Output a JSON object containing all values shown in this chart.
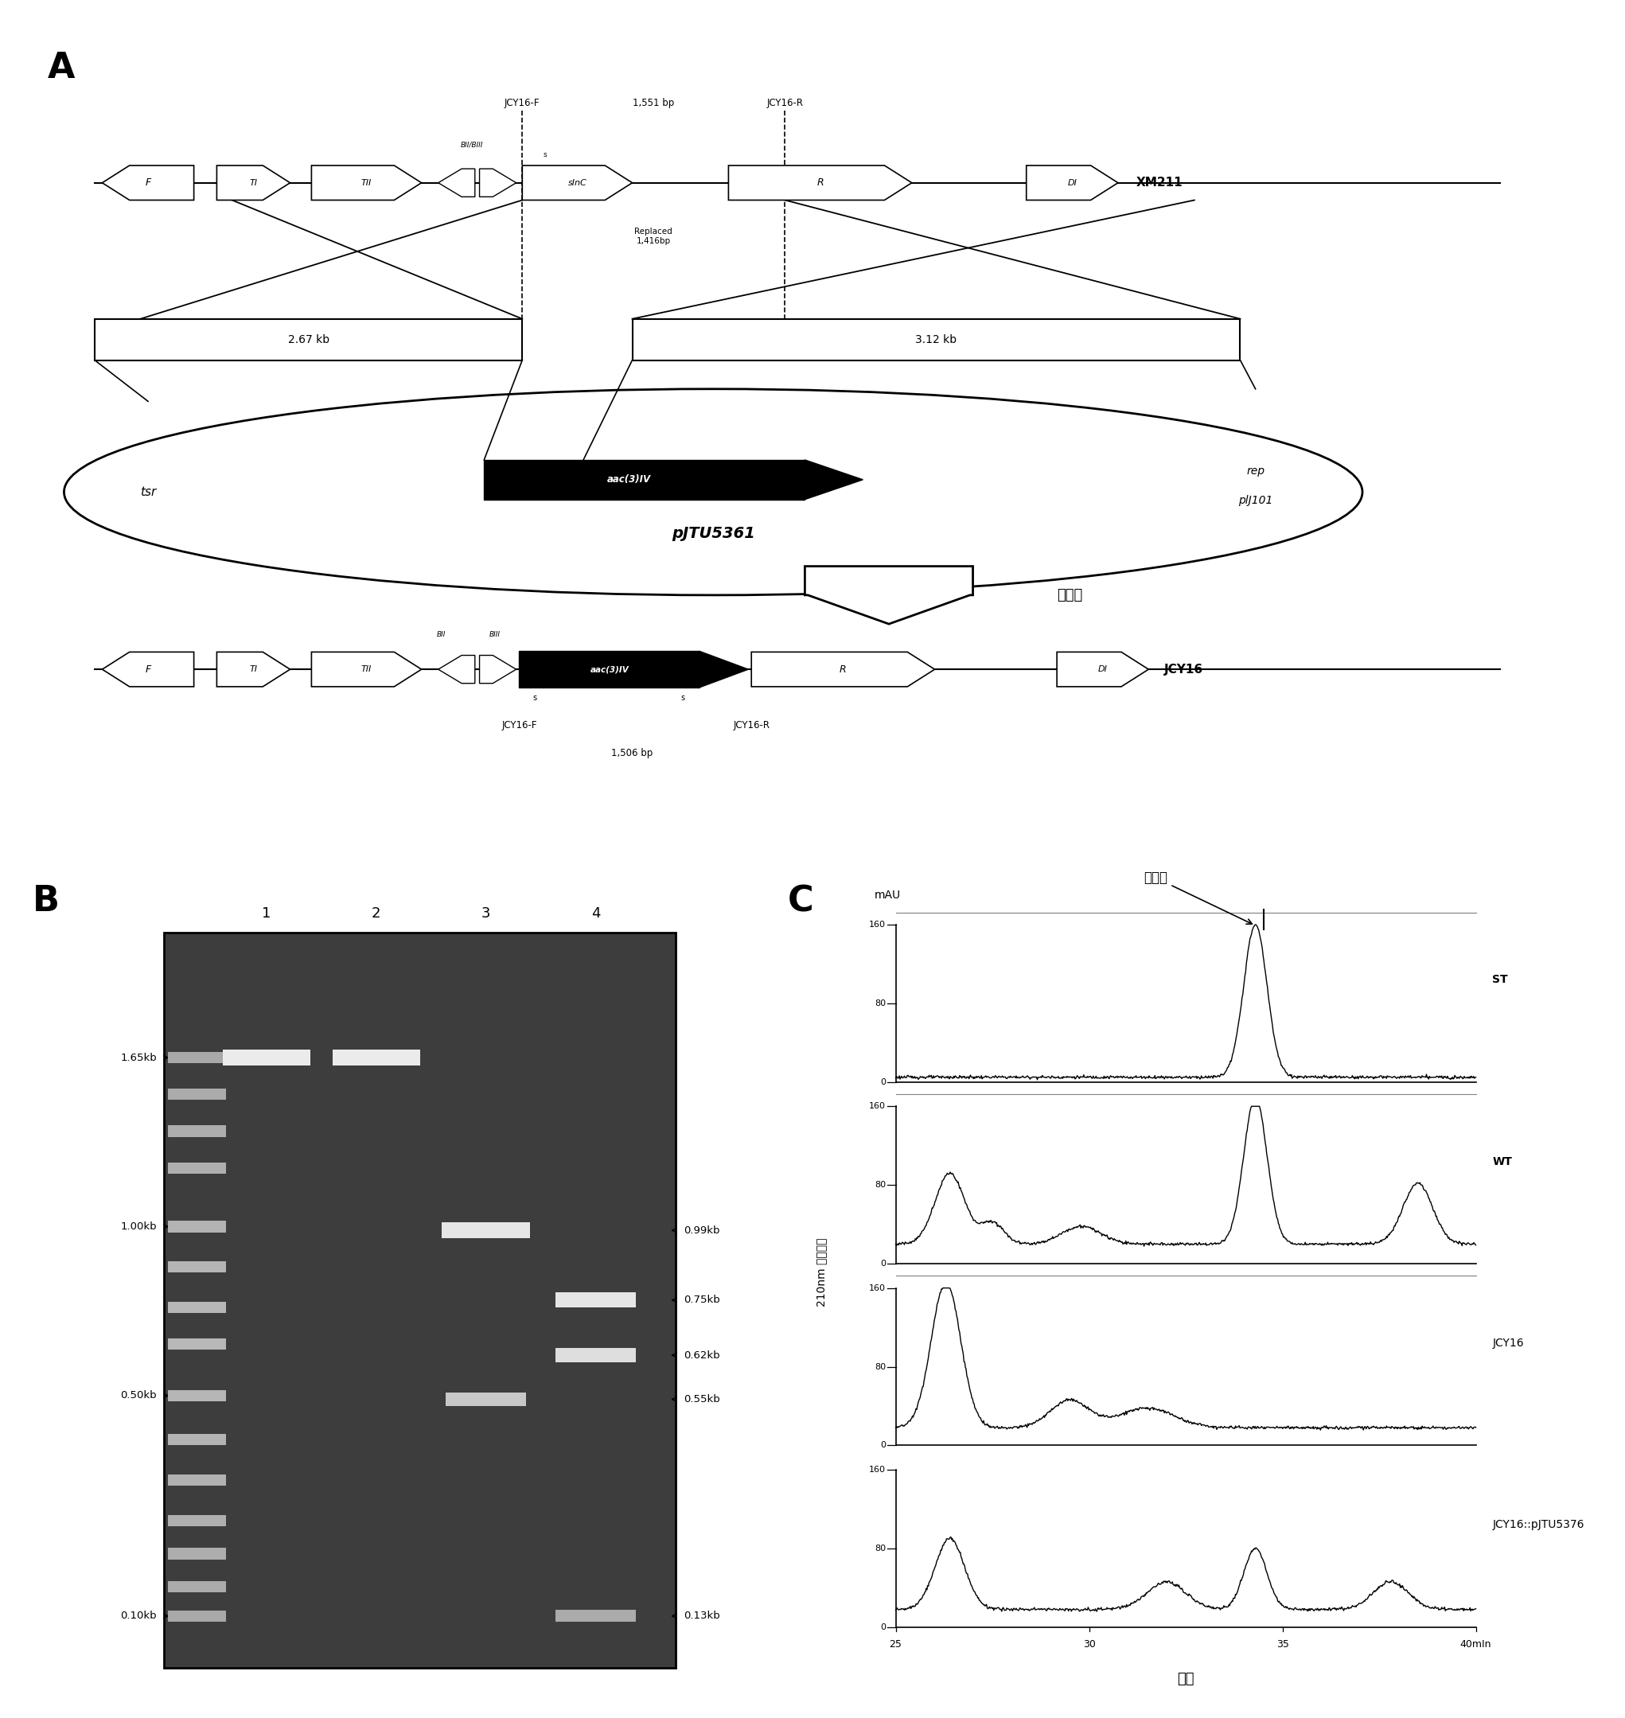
{
  "panel_A_label": "A",
  "panel_B_label": "B",
  "panel_C_label": "C",
  "xm211_label": "XM211",
  "jcy16_label": "JCY16",
  "plasmid_label": "pJTU5361",
  "plasmid_tsr": "tsr",
  "plasmid_rep1": "rep",
  "plasmid_rep2": "plJ101",
  "aac_gene": "aac(3)IV",
  "arrow_label": "双交换",
  "left_box_label": "2.67 kb",
  "right_box_label": "3.12 kb",
  "bp_top": "1,551 bp",
  "replaced_text": "Replaced\n1,416bp",
  "bp_bottom": "1,506 bp",
  "jcy16f_top": "JCY16-F",
  "jcy16r_top": "JCY16-R",
  "jcy16f_bot": "JCY16-F",
  "jcy16r_bot": "JCY16-R",
  "gene_F": "F",
  "gene_TI": "TI",
  "gene_TII": "TII",
  "gene_slnC": "sInC",
  "gene_R": "R",
  "gene_DI": "DI",
  "gene_s": "s",
  "gene_BII": "BII",
  "gene_BIII": "BIII",
  "gene_BII_BIII": "BII/BIII",
  "left_markers": [
    [
      "1.65kb",
      0.83
    ],
    [
      "1.00kb",
      0.6
    ],
    [
      "0.50kb",
      0.37
    ],
    [
      "0.10kb",
      0.07
    ]
  ],
  "right_markers": [
    [
      "0.99kb",
      0.595
    ],
    [
      "0.75kb",
      0.5
    ],
    [
      "0.62kb",
      0.425
    ],
    [
      "0.55kb",
      0.365
    ],
    [
      "0.13kb",
      0.07
    ]
  ],
  "lane_labels": [
    "1",
    "2",
    "3",
    "4"
  ],
  "gel_bg": "#3d3d3d",
  "trace_names": [
    "ST",
    "WT",
    "JCY16",
    "JCY16::pJTU5376"
  ],
  "mAU_label": "mAU",
  "time_label": "时间",
  "uv_label": "210nm 紫外吸收",
  "salinomycin_label": "盐霏素",
  "xticks": [
    25,
    30,
    35,
    40
  ],
  "xlim": [
    25,
    40
  ],
  "yticks": [
    0,
    80,
    160
  ],
  "ylim": [
    0,
    160
  ],
  "x_end_label": "40mIn"
}
